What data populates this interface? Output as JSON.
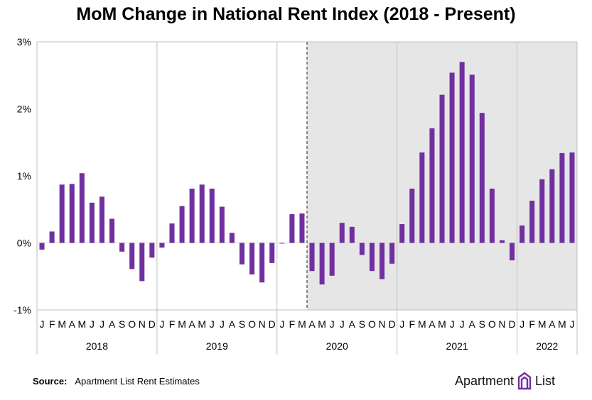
{
  "chart_data": {
    "type": "bar",
    "title": "MoM Change in National Rent Index (2018 - Present)",
    "ylim": [
      -1,
      3
    ],
    "yticks": [
      "-1%",
      "0%",
      "1%",
      "2%",
      "3%"
    ],
    "ytick_values": [
      -1,
      0,
      1,
      2,
      3
    ],
    "grid": "vertical year separators",
    "bar_color": "#7030a0",
    "shaded_region": {
      "from": "2020-04",
      "to": "2022-06",
      "color": "#e6e6e6"
    },
    "dashed_marker": "2020-04",
    "years": [
      {
        "label": "2018",
        "months": [
          "J",
          "F",
          "M",
          "A",
          "M",
          "J",
          "J",
          "A",
          "S",
          "O",
          "N",
          "D"
        ]
      },
      {
        "label": "2019",
        "months": [
          "J",
          "F",
          "M",
          "A",
          "M",
          "J",
          "J",
          "A",
          "S",
          "O",
          "N",
          "D"
        ]
      },
      {
        "label": "2020",
        "months": [
          "J",
          "F",
          "M",
          "A",
          "M",
          "J",
          "J",
          "A",
          "S",
          "O",
          "N",
          "D"
        ]
      },
      {
        "label": "2021",
        "months": [
          "J",
          "F",
          "M",
          "A",
          "M",
          "J",
          "J",
          "A",
          "S",
          "O",
          "N",
          "D"
        ]
      },
      {
        "label": "2022",
        "months": [
          "J",
          "F",
          "M",
          "A",
          "M",
          "J"
        ]
      }
    ],
    "values": [
      -0.1,
      0.17,
      0.87,
      0.88,
      1.04,
      0.6,
      0.69,
      0.36,
      -0.13,
      -0.39,
      -0.57,
      -0.22,
      -0.07,
      0.29,
      0.55,
      0.81,
      0.87,
      0.81,
      0.54,
      0.15,
      -0.32,
      -0.47,
      -0.59,
      -0.3,
      -0.01,
      0.43,
      0.44,
      -0.42,
      -0.62,
      -0.49,
      0.3,
      0.24,
      -0.18,
      -0.42,
      -0.54,
      -0.31,
      0.28,
      0.81,
      1.35,
      1.71,
      2.21,
      2.54,
      2.7,
      2.51,
      1.94,
      0.81,
      0.04,
      -0.26,
      0.26,
      0.63,
      0.95,
      1.1,
      1.34,
      1.35
    ]
  },
  "footer": {
    "source_label": "Source:",
    "source_text": "Apartment List Rent Estimates",
    "logo_left": "Apartment",
    "logo_right": "List"
  }
}
